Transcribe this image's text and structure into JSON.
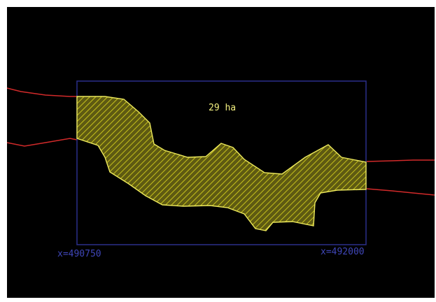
{
  "drawing": {
    "area_label": "29 ha",
    "x_labels": {
      "left": "x=490750",
      "right": "x=492000"
    }
  },
  "colors": {
    "background": "#000000",
    "frame": "#2a2f8a",
    "coord_text": "#3f46b8",
    "boundary_lines": "#d22a2a",
    "polygon_fill": "#5e5a12",
    "polygon_hatch": "#c6c11d",
    "polygon_edge": "#ece85b",
    "area_text": "#f2ef7f"
  }
}
